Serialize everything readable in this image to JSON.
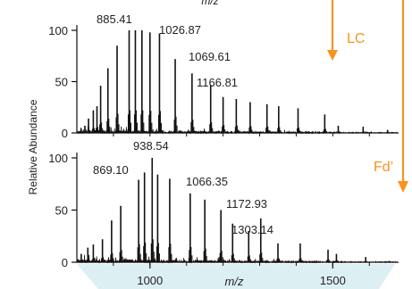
{
  "colors": {
    "orange": "#F7941D",
    "blue_band": "#DCEFF3",
    "ink": "#111111"
  },
  "labels": {
    "ylabel": "Relative Abundance",
    "xlabel_top_partial": "m/z",
    "xlabel": "m/z"
  },
  "annotations": {
    "lc_label": "LC",
    "fd_label": "Fd’"
  },
  "chart_data": [
    {
      "type": "line",
      "panel": "top",
      "arrow_label": "LC",
      "xlim": [
        800,
        1680
      ],
      "ylim": [
        0,
        100
      ],
      "yticks": [
        0,
        50,
        100
      ],
      "ylabel": "Relative Abundance",
      "peak_labels": [
        {
          "mz": 885.41,
          "text": "885.41"
        },
        {
          "mz": 1026.87,
          "text": "1026.87"
        },
        {
          "mz": 1069.61,
          "text": "1069.61"
        },
        {
          "mz": 1166.81,
          "text": "1166.81"
        }
      ],
      "peaks": [
        {
          "mz": 812,
          "y": 4
        },
        {
          "mz": 822,
          "y": 7
        },
        {
          "mz": 832,
          "y": 14
        },
        {
          "mz": 845,
          "y": 22
        },
        {
          "mz": 855,
          "y": 26
        },
        {
          "mz": 865,
          "y": 46
        },
        {
          "mz": 885,
          "y": 63
        },
        {
          "mz": 910,
          "y": 85
        },
        {
          "mz": 943,
          "y": 100
        },
        {
          "mz": 960,
          "y": 100
        },
        {
          "mz": 978,
          "y": 100
        },
        {
          "mz": 1000,
          "y": 98
        },
        {
          "mz": 1026,
          "y": 97
        },
        {
          "mz": 1069,
          "y": 72
        },
        {
          "mz": 1115,
          "y": 58
        },
        {
          "mz": 1166,
          "y": 47
        },
        {
          "mz": 1200,
          "y": 35
        },
        {
          "mz": 1236,
          "y": 33
        },
        {
          "mz": 1274,
          "y": 30
        },
        {
          "mz": 1320,
          "y": 28
        },
        {
          "mz": 1352,
          "y": 26
        },
        {
          "mz": 1405,
          "y": 24
        },
        {
          "mz": 1478,
          "y": 18
        },
        {
          "mz": 1515,
          "y": 7
        },
        {
          "mz": 1583,
          "y": 6
        },
        {
          "mz": 1650,
          "y": 3
        }
      ]
    },
    {
      "type": "line",
      "panel": "bottom",
      "arrow_label": "Fd’",
      "xlim": [
        800,
        1680
      ],
      "ylim": [
        0,
        100
      ],
      "yticks": [
        0,
        50,
        100
      ],
      "xticks": [
        1000,
        1500
      ],
      "xlabel": "m/z",
      "peak_labels": [
        {
          "mz": 869.1,
          "text": "869.10"
        },
        {
          "mz": 938.54,
          "text": "938.54"
        },
        {
          "mz": 1066.35,
          "text": "1066.35"
        },
        {
          "mz": 1172.93,
          "text": "1172.93"
        },
        {
          "mz": 1303.14,
          "text": "1303.14"
        }
      ],
      "peaks": [
        {
          "mz": 812,
          "y": 8
        },
        {
          "mz": 830,
          "y": 14
        },
        {
          "mz": 845,
          "y": 17
        },
        {
          "mz": 870,
          "y": 22
        },
        {
          "mz": 895,
          "y": 40
        },
        {
          "mz": 920,
          "y": 54
        },
        {
          "mz": 969,
          "y": 79
        },
        {
          "mz": 985,
          "y": 86
        },
        {
          "mz": 1006,
          "y": 100
        },
        {
          "mz": 1021,
          "y": 84
        },
        {
          "mz": 1054,
          "y": 80
        },
        {
          "mz": 1110,
          "y": 66
        },
        {
          "mz": 1150,
          "y": 60
        },
        {
          "mz": 1194,
          "y": 50
        },
        {
          "mz": 1226,
          "y": 37
        },
        {
          "mz": 1270,
          "y": 30
        },
        {
          "mz": 1303,
          "y": 42
        },
        {
          "mz": 1350,
          "y": 18
        },
        {
          "mz": 1411,
          "y": 18
        },
        {
          "mz": 1487,
          "y": 12
        },
        {
          "mz": 1510,
          "y": 8
        },
        {
          "mz": 1590,
          "y": 5
        }
      ]
    }
  ]
}
